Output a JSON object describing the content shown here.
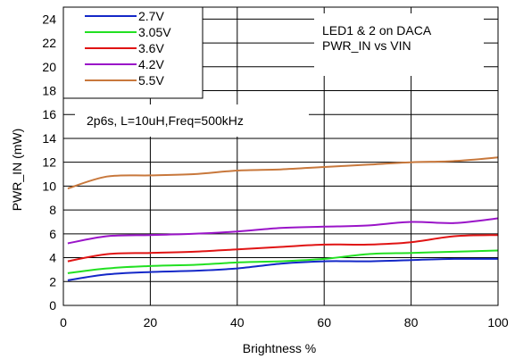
{
  "chart_data": {
    "type": "line",
    "title": "LED1 & 2 on DACA",
    "subtitle": "PWR_IN vs VIN",
    "annotation": "2p6s, L=10uH,Freq=500kHz",
    "xlabel": "Brightness %",
    "ylabel": "PWR_IN (mW)",
    "xlim": [
      0,
      100
    ],
    "ylim": [
      0,
      25
    ],
    "xticks": [
      0,
      20,
      40,
      60,
      80,
      100
    ],
    "yticks": [
      0,
      2,
      4,
      6,
      8,
      10,
      12,
      14,
      16,
      18,
      20,
      22,
      24
    ],
    "grid": true,
    "legend_position": "top-left",
    "series": [
      {
        "name": "2.7V",
        "color": "#1428c8",
        "x": [
          1,
          10,
          20,
          30,
          40,
          50,
          60,
          70,
          80,
          90,
          100
        ],
        "y": [
          2.1,
          2.6,
          2.8,
          2.9,
          3.1,
          3.5,
          3.7,
          3.7,
          3.8,
          3.9,
          3.9
        ]
      },
      {
        "name": "3.05V",
        "color": "#22e022",
        "x": [
          1,
          10,
          20,
          30,
          40,
          50,
          60,
          70,
          80,
          90,
          100
        ],
        "y": [
          2.7,
          3.1,
          3.3,
          3.4,
          3.6,
          3.7,
          3.9,
          4.3,
          4.4,
          4.5,
          4.6
        ]
      },
      {
        "name": "3.6V",
        "color": "#e01414",
        "x": [
          1,
          10,
          20,
          30,
          40,
          50,
          60,
          70,
          80,
          90,
          100
        ],
        "y": [
          3.7,
          4.3,
          4.4,
          4.5,
          4.7,
          4.9,
          5.1,
          5.1,
          5.3,
          5.8,
          5.9
        ]
      },
      {
        "name": "4.2V",
        "color": "#9a14c8",
        "x": [
          1,
          10,
          20,
          30,
          40,
          50,
          60,
          70,
          80,
          90,
          100
        ],
        "y": [
          5.2,
          5.8,
          5.9,
          6.0,
          6.2,
          6.5,
          6.6,
          6.7,
          7.0,
          6.9,
          7.3
        ]
      },
      {
        "name": "5.5V",
        "color": "#c8783c",
        "x": [
          1,
          10,
          20,
          30,
          40,
          50,
          60,
          70,
          80,
          90,
          100
        ],
        "y": [
          9.8,
          10.8,
          10.9,
          11.0,
          11.3,
          11.4,
          11.6,
          11.8,
          12.0,
          12.1,
          12.4
        ]
      }
    ]
  }
}
